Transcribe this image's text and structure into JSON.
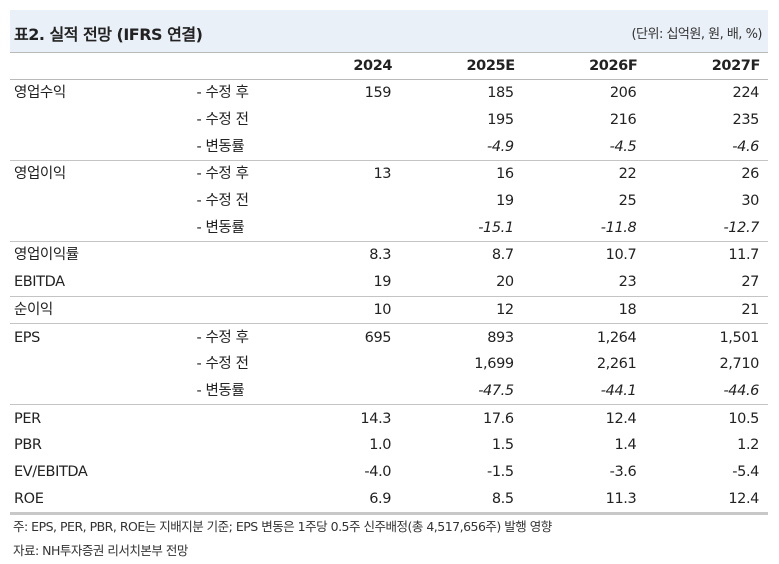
{
  "title": "표2. 실적 전망 (IFRS 연결)",
  "unit": "(단위: 십억원, 원, 배, %)",
  "columns": [
    "2024",
    "2025E",
    "2026F",
    "2027F"
  ],
  "rows": [
    {
      "label": "영업수익",
      "sub": "- 수정 후",
      "values": [
        "159",
        "185",
        "206",
        "224"
      ],
      "sep": false
    },
    {
      "label": "",
      "sub": "- 수정 전",
      "values": [
        "",
        "195",
        "216",
        "235"
      ]
    },
    {
      "label": "",
      "sub": "- 변동률",
      "values": [
        "",
        "-4.9",
        "-4.5",
        "-4.6"
      ],
      "italic": true
    },
    {
      "label": "영업이익",
      "sub": "- 수정 후",
      "values": [
        "13",
        "16",
        "22",
        "26"
      ],
      "sep": true
    },
    {
      "label": "",
      "sub": "- 수정 전",
      "values": [
        "",
        "19",
        "25",
        "30"
      ]
    },
    {
      "label": "",
      "sub": "- 변동률",
      "values": [
        "",
        "-15.1",
        "-11.8",
        "-12.7"
      ],
      "italic": true
    },
    {
      "label": "영업이익률",
      "sub": "",
      "values": [
        "8.3",
        "8.7",
        "10.7",
        "11.7"
      ],
      "sep": true
    },
    {
      "label": "EBITDA",
      "sub": "",
      "values": [
        "19",
        "20",
        "23",
        "27"
      ]
    },
    {
      "label": "순이익",
      "sub": "",
      "values": [
        "10",
        "12",
        "18",
        "21"
      ],
      "sep": true
    },
    {
      "label": "EPS",
      "sub": "- 수정 후",
      "values": [
        "695",
        "893",
        "1,264",
        "1,501"
      ],
      "sep": true
    },
    {
      "label": "",
      "sub": "- 수정 전",
      "values": [
        "",
        "1,699",
        "2,261",
        "2,710"
      ]
    },
    {
      "label": "",
      "sub": "- 변동률",
      "values": [
        "",
        "-47.5",
        "-44.1",
        "-44.6"
      ],
      "italic": true
    },
    {
      "label": "PER",
      "sub": "",
      "values": [
        "14.3",
        "17.6",
        "12.4",
        "10.5"
      ],
      "sep": true
    },
    {
      "label": "PBR",
      "sub": "",
      "values": [
        "1.0",
        "1.5",
        "1.4",
        "1.2"
      ]
    },
    {
      "label": "EV/EBITDA",
      "sub": "",
      "values": [
        "-4.0",
        "-1.5",
        "-3.6",
        "-5.4"
      ]
    },
    {
      "label": "ROE",
      "sub": "",
      "values": [
        "6.9",
        "8.5",
        "11.3",
        "12.4"
      ]
    }
  ],
  "notes": [
    "주: EPS, PER, PBR, ROE는 지배지분 기준; EPS 변동은 1주당 0.5주 신주배정(총 4,517,656주) 발행 영향",
    "자료: NH투자증권 리서치본부 전망"
  ]
}
